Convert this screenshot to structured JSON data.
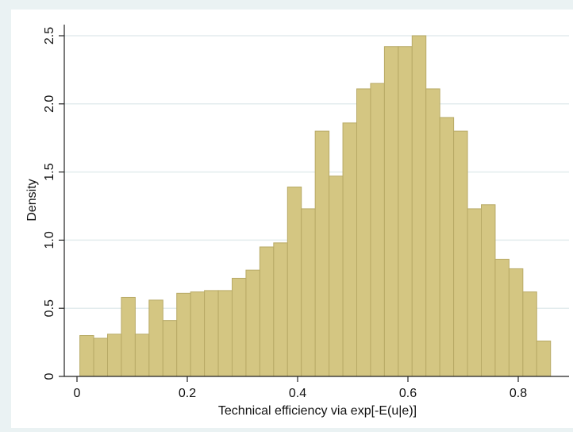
{
  "chart_data": {
    "type": "bar",
    "title": "",
    "xlabel": "Technical efficiency via exp[-E(u|e)]",
    "ylabel": "Density",
    "xlim": [
      0,
      0.88
    ],
    "ylim": [
      0,
      2.55
    ],
    "xticks": [
      0,
      0.2,
      0.4,
      0.6,
      0.8
    ],
    "xtick_labels": [
      "0",
      "0.2",
      "0.4",
      "0.6",
      "0.8"
    ],
    "yticks": [
      0,
      0.5,
      1.0,
      1.5,
      2.0,
      2.5
    ],
    "ytick_labels": [
      "0",
      "0.5",
      "1.0",
      "1.5",
      "2.0",
      "2.5"
    ],
    "bin_width": 0.0251,
    "bin_starts": [
      0.0052,
      0.0303,
      0.0554,
      0.0805,
      0.1056,
      0.1307,
      0.1558,
      0.1809,
      0.206,
      0.2311,
      0.2562,
      0.2813,
      0.3064,
      0.3315,
      0.3566,
      0.3817,
      0.4068,
      0.4319,
      0.457,
      0.4821,
      0.5072,
      0.5323,
      0.5574,
      0.5825,
      0.6076,
      0.6327,
      0.6578,
      0.6829,
      0.708,
      0.7331,
      0.7582,
      0.7833,
      0.8084,
      0.8335,
      0.8586
    ],
    "values": [
      0.3,
      0.28,
      0.31,
      0.58,
      0.31,
      0.56,
      0.41,
      0.61,
      0.62,
      0.63,
      0.63,
      0.72,
      0.78,
      0.95,
      0.98,
      1.39,
      1.23,
      1.8,
      1.47,
      1.86,
      2.11,
      2.15,
      2.42,
      2.42,
      2.5,
      2.11,
      1.9,
      1.8,
      1.23,
      1.26,
      0.86,
      0.79,
      0.62,
      0.26,
      0.0
    ],
    "grid": true,
    "colors": {
      "bar_fill": "#d4c682",
      "bar_stroke": "#b8aa66",
      "plot_bg": "#ffffff",
      "outer_bg": "#eaf2f3",
      "grid": "#e3ecee"
    }
  }
}
